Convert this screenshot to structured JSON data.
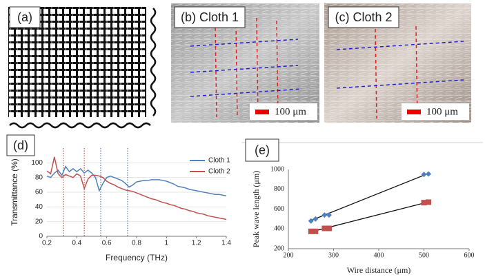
{
  "panels": [
    {
      "label": "(a)"
    },
    {
      "label": "(b) Cloth 1",
      "scale_bar": "100 μm"
    },
    {
      "label": "(c) Cloth 2",
      "scale_bar": "100 μm"
    },
    {
      "label": "(d)"
    },
    {
      "label": "(e)"
    }
  ],
  "chart_data": [
    {
      "type": "line",
      "xlabel": "Frequency (THz)",
      "ylabel": "Transmittance (%)",
      "x": [
        0.2,
        0.225,
        0.25,
        0.275,
        0.3,
        0.325,
        0.35,
        0.375,
        0.4,
        0.425,
        0.45,
        0.475,
        0.5,
        0.525,
        0.55,
        0.575,
        0.6,
        0.625,
        0.65,
        0.675,
        0.7,
        0.725,
        0.75,
        0.775,
        0.8,
        0.825,
        0.85,
        0.875,
        0.9,
        0.925,
        0.95,
        0.975,
        1,
        1.025,
        1.05,
        1.075,
        1.1,
        1.125,
        1.15,
        1.175,
        1.2,
        1.225,
        1.25,
        1.275,
        1.3,
        1.325,
        1.35,
        1.375,
        1.4
      ],
      "series": [
        {
          "name": "Cloth 1",
          "color": "#4f81bd",
          "values": [
            82,
            80,
            86,
            90,
            83,
            95,
            88,
            92,
            88,
            92,
            86,
            90,
            86,
            80,
            62,
            72,
            80,
            82,
            80,
            78,
            76,
            72,
            67,
            70,
            74,
            75,
            76,
            76,
            77,
            77,
            77,
            76,
            75,
            73,
            71,
            68,
            67,
            66,
            64,
            63,
            62,
            61,
            60,
            59,
            58,
            57,
            57,
            56,
            55
          ]
        },
        {
          "name": "Cloth 2",
          "color": "#c0504d",
          "values": [
            89,
            85,
            108,
            85,
            80,
            84,
            82,
            80,
            85,
            82,
            65,
            78,
            83,
            83,
            82,
            80,
            75,
            72,
            70,
            67,
            65,
            63,
            62,
            61,
            59,
            57,
            55,
            53,
            51,
            50,
            48,
            46,
            45,
            43,
            42,
            40,
            38,
            37,
            35,
            34,
            32,
            31,
            30,
            28,
            27,
            26,
            25,
            24,
            23
          ]
        }
      ],
      "vlines": [
        {
          "x": 0.31,
          "color": "#c0504d"
        },
        {
          "x": 0.45,
          "color": "#c0504d"
        },
        {
          "x": 0.56,
          "color": "#4f81bd"
        },
        {
          "x": 0.74,
          "color": "#4f81bd"
        }
      ],
      "xlim": [
        0.2,
        1.4
      ],
      "xticks": [
        0.2,
        0.4,
        0.6,
        0.8,
        1,
        1.2,
        1.4
      ],
      "ylim": [
        0,
        120
      ],
      "yticks": [
        0,
        20,
        40,
        60,
        80,
        100
      ],
      "grid": true
    },
    {
      "type": "scatter",
      "xlabel": "Wire distance (μm)",
      "ylabel": "Peak wave length (μm)",
      "series": [
        {
          "color": "#4f81bd",
          "marker": "diamond",
          "x": [
            250,
            260,
            280,
            290,
            500,
            510
          ],
          "values": [
            480,
            500,
            540,
            540,
            950,
            955
          ]
        },
        {
          "color": "#c0504d",
          "marker": "square",
          "x": [
            250,
            260,
            280,
            290,
            500,
            510
          ],
          "values": [
            375,
            375,
            405,
            405,
            665,
            670
          ]
        }
      ],
      "fits": [
        {
          "x": [
            250,
            510
          ],
          "y": [
            485,
            960
          ]
        },
        {
          "x": [
            250,
            510
          ],
          "y": [
            370,
            672
          ]
        }
      ],
      "xlim": [
        200,
        600
      ],
      "xticks": [
        200,
        300,
        400,
        500,
        600
      ],
      "ylim": [
        200,
        1000
      ],
      "yticks": [
        200,
        400,
        600,
        800,
        1000
      ]
    }
  ]
}
